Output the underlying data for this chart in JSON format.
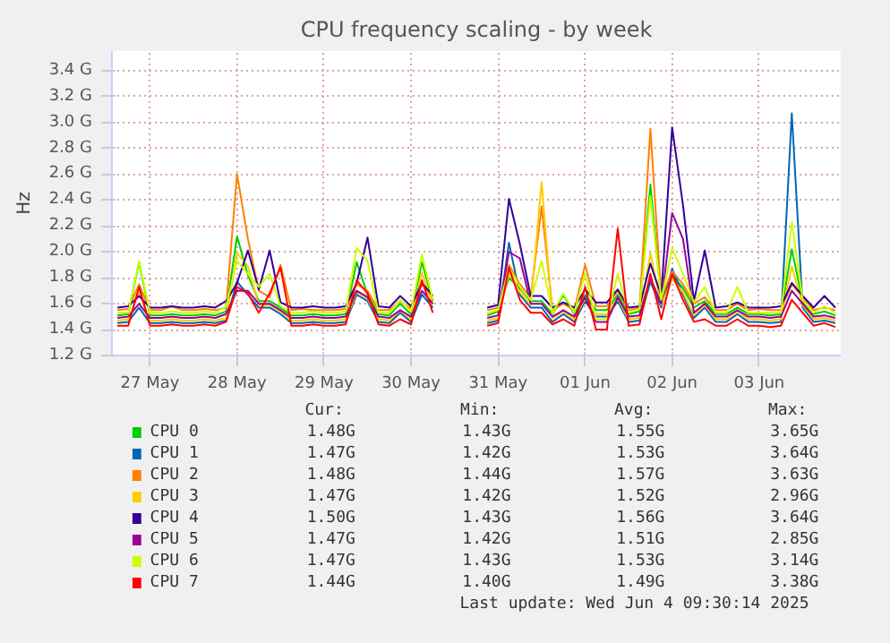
{
  "chart_data": {
    "type": "line",
    "title": "CPU frequency scaling - by week",
    "ylabel": "Hz",
    "x": [
      "2025-05-27T03:00",
      "2025-05-27T06:00",
      "2025-05-27T09:00",
      "2025-05-27T12:00",
      "2025-05-27T15:00",
      "2025-05-27T18:00",
      "2025-05-27T21:00",
      "2025-05-28T00:00",
      "2025-05-28T03:00",
      "2025-05-28T06:00",
      "2025-05-28T09:00",
      "2025-05-28T12:00",
      "2025-05-28T15:00",
      "2025-05-28T18:00",
      "2025-05-28T21:00",
      "2025-05-29T00:00",
      "2025-05-29T03:00",
      "2025-05-29T06:00",
      "2025-05-29T09:00",
      "2025-05-29T12:00",
      "2025-05-29T15:00",
      "2025-05-29T18:00",
      "2025-05-29T21:00",
      "2025-05-30T00:00",
      "2025-05-30T03:00",
      "2025-05-30T06:00",
      "2025-05-30T09:00",
      "2025-05-30T12:00",
      "2025-05-30T15:00",
      "2025-05-30T18:00",
      "2025-05-30T21:00",
      "2025-05-31T00:00",
      "2025-05-31T03:00",
      "2025-05-31T06:00",
      "2025-05-31T09:00",
      "2025-05-31T12:00",
      "2025-05-31T15:00",
      "2025-05-31T18:00",
      "2025-05-31T21:00",
      "2025-06-01T00:00",
      "2025-06-01T03:00",
      "2025-06-01T06:00",
      "2025-06-01T09:00",
      "2025-06-01T12:00",
      "2025-06-01T15:00",
      "2025-06-01T18:00",
      "2025-06-01T21:00",
      "2025-06-02T00:00",
      "2025-06-02T03:00",
      "2025-06-02T06:00",
      "2025-06-02T09:00",
      "2025-06-02T12:00",
      "2025-06-02T15:00",
      "2025-06-02T18:00",
      "2025-06-02T21:00",
      "2025-06-03T00:00",
      "2025-06-03T03:00",
      "2025-06-03T06:00",
      "2025-06-03T09:00",
      "2025-06-03T12:00",
      "2025-06-03T15:00",
      "2025-06-03T18:00",
      "2025-06-03T21:00",
      "2025-06-04T00:00",
      "2025-06-04T03:00",
      "2025-06-04T06:00",
      "2025-06-04T09:00"
    ],
    "series": [
      {
        "name": "CPU 0",
        "color": "#00cc00",
        "values": [
          1.51,
          1.52,
          1.92,
          1.51,
          1.51,
          1.52,
          1.51,
          1.51,
          1.52,
          1.51,
          1.54,
          2.12,
          1.82,
          1.62,
          1.62,
          1.57,
          1.51,
          1.51,
          1.52,
          1.51,
          1.51,
          1.52,
          1.92,
          1.67,
          1.52,
          1.51,
          1.6,
          1.52,
          1.92,
          1.62,
          null,
          null,
          null,
          null,
          1.51,
          1.54,
          1.8,
          1.72,
          1.62,
          1.62,
          1.52,
          1.67,
          1.52,
          1.67,
          1.55,
          1.55,
          1.67,
          1.52,
          1.54,
          2.52,
          1.62,
          1.82,
          1.72,
          1.57,
          1.62,
          1.52,
          1.52,
          1.57,
          1.52,
          1.52,
          1.51,
          1.52,
          2.02,
          1.62,
          1.52,
          1.54,
          1.51
        ]
      },
      {
        "name": "CPU 1",
        "color": "#0066b3",
        "values": [
          1.45,
          1.46,
          1.57,
          1.45,
          1.45,
          1.46,
          1.45,
          1.45,
          1.46,
          1.45,
          1.47,
          1.77,
          1.67,
          1.57,
          1.57,
          1.52,
          1.45,
          1.45,
          1.46,
          1.45,
          1.45,
          1.46,
          1.67,
          1.62,
          1.46,
          1.45,
          1.53,
          1.46,
          1.67,
          1.57,
          null,
          null,
          null,
          null,
          1.45,
          1.47,
          2.07,
          1.67,
          1.57,
          1.57,
          1.46,
          1.52,
          1.46,
          1.62,
          1.5,
          1.5,
          1.62,
          1.46,
          1.47,
          1.77,
          1.57,
          1.87,
          1.67,
          1.49,
          1.57,
          1.46,
          1.46,
          1.52,
          1.46,
          1.46,
          1.45,
          1.46,
          3.07,
          1.57,
          1.46,
          1.47,
          1.45
        ]
      },
      {
        "name": "CPU 2",
        "color": "#ff8000",
        "values": [
          1.55,
          1.56,
          1.75,
          1.55,
          1.55,
          1.58,
          1.55,
          1.55,
          1.56,
          1.55,
          1.57,
          2.6,
          2.1,
          1.7,
          1.65,
          1.9,
          1.55,
          1.56,
          1.55,
          1.55,
          1.55,
          1.56,
          1.75,
          1.7,
          1.55,
          1.55,
          1.62,
          1.56,
          1.75,
          1.65,
          null,
          null,
          null,
          null,
          1.55,
          1.57,
          1.9,
          1.75,
          1.65,
          2.35,
          1.55,
          1.6,
          1.55,
          1.9,
          1.58,
          1.58,
          1.7,
          1.55,
          1.57,
          2.95,
          1.65,
          1.85,
          1.75,
          1.6,
          1.65,
          1.55,
          1.55,
          1.6,
          1.55,
          1.56,
          1.55,
          1.55,
          1.75,
          1.65,
          1.55,
          1.57,
          1.55
        ]
      },
      {
        "name": "CPU 3",
        "color": "#ffcc00",
        "values": [
          1.47,
          1.48,
          1.69,
          1.47,
          1.47,
          1.48,
          1.47,
          1.47,
          1.48,
          1.47,
          1.49,
          1.99,
          1.89,
          1.59,
          1.59,
          1.54,
          1.47,
          1.47,
          1.48,
          1.47,
          1.47,
          1.48,
          1.69,
          1.64,
          1.48,
          1.47,
          1.55,
          1.48,
          1.84,
          1.59,
          null,
          null,
          null,
          null,
          1.47,
          1.49,
          1.84,
          1.69,
          1.59,
          2.54,
          1.49,
          1.54,
          1.48,
          1.64,
          1.52,
          1.52,
          1.64,
          1.48,
          1.49,
          1.99,
          1.59,
          1.79,
          1.69,
          1.51,
          1.59,
          1.48,
          1.48,
          1.54,
          1.48,
          1.48,
          1.47,
          1.48,
          1.89,
          1.59,
          1.48,
          1.49,
          1.47
        ]
      },
      {
        "name": "CPU 4",
        "color": "#330099",
        "values": [
          1.57,
          1.58,
          1.66,
          1.57,
          1.57,
          1.58,
          1.57,
          1.57,
          1.58,
          1.57,
          1.62,
          1.76,
          2.01,
          1.71,
          2.01,
          1.61,
          1.57,
          1.57,
          1.58,
          1.57,
          1.57,
          1.58,
          1.76,
          2.11,
          1.58,
          1.57,
          1.66,
          1.58,
          1.76,
          1.66,
          null,
          null,
          null,
          null,
          1.57,
          1.59,
          2.41,
          2.06,
          1.66,
          1.66,
          1.57,
          1.61,
          1.57,
          1.71,
          1.61,
          1.61,
          1.71,
          1.57,
          1.58,
          1.91,
          1.66,
          2.96,
          2.36,
          1.62,
          2.01,
          1.57,
          1.58,
          1.61,
          1.57,
          1.57,
          1.57,
          1.58,
          1.76,
          1.66,
          1.57,
          1.66,
          1.57
        ]
      },
      {
        "name": "CPU 5",
        "color": "#990099",
        "values": [
          1.49,
          1.5,
          1.6,
          1.49,
          1.49,
          1.5,
          1.49,
          1.49,
          1.5,
          1.49,
          1.52,
          1.7,
          1.7,
          1.6,
          1.6,
          1.55,
          1.49,
          1.49,
          1.5,
          1.49,
          1.49,
          1.5,
          1.7,
          1.65,
          1.5,
          1.49,
          1.55,
          1.5,
          1.7,
          1.6,
          null,
          null,
          null,
          null,
          1.49,
          1.51,
          2.0,
          1.95,
          1.6,
          1.6,
          1.5,
          1.55,
          1.5,
          1.65,
          1.46,
          1.46,
          1.65,
          1.5,
          1.51,
          1.8,
          1.6,
          2.3,
          2.1,
          1.53,
          1.6,
          1.5,
          1.5,
          1.55,
          1.5,
          1.5,
          1.49,
          1.5,
          1.7,
          1.6,
          1.5,
          1.51,
          1.49
        ]
      },
      {
        "name": "CPU 6",
        "color": "#ccff00",
        "values": [
          1.53,
          1.53,
          1.93,
          1.53,
          1.53,
          1.54,
          1.53,
          1.53,
          1.54,
          1.53,
          1.58,
          1.93,
          1.83,
          1.73,
          1.83,
          1.58,
          1.53,
          1.53,
          1.54,
          1.53,
          1.53,
          1.54,
          2.03,
          1.93,
          1.53,
          1.53,
          1.63,
          1.54,
          1.98,
          1.63,
          null,
          null,
          null,
          null,
          1.53,
          1.55,
          1.88,
          1.73,
          1.63,
          1.93,
          1.53,
          1.68,
          1.53,
          1.83,
          1.48,
          1.48,
          1.83,
          1.53,
          1.56,
          2.43,
          1.63,
          2.03,
          1.83,
          1.61,
          1.73,
          1.53,
          1.53,
          1.73,
          1.53,
          1.53,
          1.53,
          1.53,
          2.23,
          1.63,
          1.53,
          1.58,
          1.53
        ]
      },
      {
        "name": "CPU 7",
        "color": "#ff0000",
        "values": [
          1.43,
          1.43,
          1.73,
          1.43,
          1.43,
          1.44,
          1.43,
          1.43,
          1.44,
          1.43,
          1.46,
          1.73,
          1.68,
          1.53,
          1.68,
          1.88,
          1.43,
          1.43,
          1.44,
          1.43,
          1.43,
          1.44,
          1.78,
          1.68,
          1.44,
          1.43,
          1.48,
          1.44,
          1.78,
          1.53,
          null,
          null,
          null,
          null,
          1.43,
          1.45,
          1.88,
          1.63,
          1.53,
          1.53,
          1.44,
          1.48,
          1.43,
          1.73,
          1.4,
          1.4,
          2.18,
          1.43,
          1.44,
          1.83,
          1.48,
          1.83,
          1.63,
          1.46,
          1.48,
          1.43,
          1.43,
          1.48,
          1.43,
          1.43,
          1.42,
          1.43,
          1.63,
          1.53,
          1.43,
          1.45,
          1.42
        ]
      }
    ],
    "xlim": [
      "2025-05-27T01:30",
      "2025-06-04T10:30"
    ],
    "xticks": [
      {
        "value": "2025-05-27T12:00",
        "label": "27 May"
      },
      {
        "value": "2025-05-28T12:00",
        "label": "28 May"
      },
      {
        "value": "2025-05-29T12:00",
        "label": "29 May"
      },
      {
        "value": "2025-05-30T12:00",
        "label": "30 May"
      },
      {
        "value": "2025-05-31T12:00",
        "label": "31 May"
      },
      {
        "value": "2025-06-01T12:00",
        "label": "01 Jun"
      },
      {
        "value": "2025-06-02T12:00",
        "label": "02 Jun"
      },
      {
        "value": "2025-06-03T12:00",
        "label": "03 Jun"
      }
    ],
    "ylim": [
      1.2,
      3.55
    ],
    "yticks": [
      {
        "value": 1.2,
        "label": "1.2 G"
      },
      {
        "value": 1.4,
        "label": "1.4 G"
      },
      {
        "value": 1.6,
        "label": "1.6 G"
      },
      {
        "value": 1.8,
        "label": "1.8 G"
      },
      {
        "value": 2.0,
        "label": "2.0 G"
      },
      {
        "value": 2.2,
        "label": "2.2 G"
      },
      {
        "value": 2.4,
        "label": "2.4 G"
      },
      {
        "value": 2.6,
        "label": "2.6 G"
      },
      {
        "value": 2.8,
        "label": "2.8 G"
      },
      {
        "value": 3.0,
        "label": "3.0 G"
      },
      {
        "value": 3.2,
        "label": "3.2 G"
      },
      {
        "value": 3.4,
        "label": "3.4 G"
      }
    ],
    "grid": true,
    "legend": "bottom",
    "line_style": "solid",
    "annotations": [
      "Cur:",
      "Min:",
      "Avg:",
      "Max:",
      "1.48G",
      "1.43G",
      "1.55G",
      "3.65G",
      "1.47G",
      "1.42G",
      "1.53G",
      "3.64G",
      "1.48G",
      "1.44G",
      "1.57G",
      "3.63G",
      "1.47G",
      "1.42G",
      "1.52G",
      "2.96G",
      "1.50G",
      "1.43G",
      "1.56G",
      "3.64G",
      "1.47G",
      "1.42G",
      "1.51G",
      "2.85G",
      "1.47G",
      "1.43G",
      "1.53G",
      "3.14G",
      "1.44G",
      "1.40G",
      "1.49G",
      "3.38G",
      "Last update: Wed Jun  4 09:30:14 2025"
    ]
  }
}
